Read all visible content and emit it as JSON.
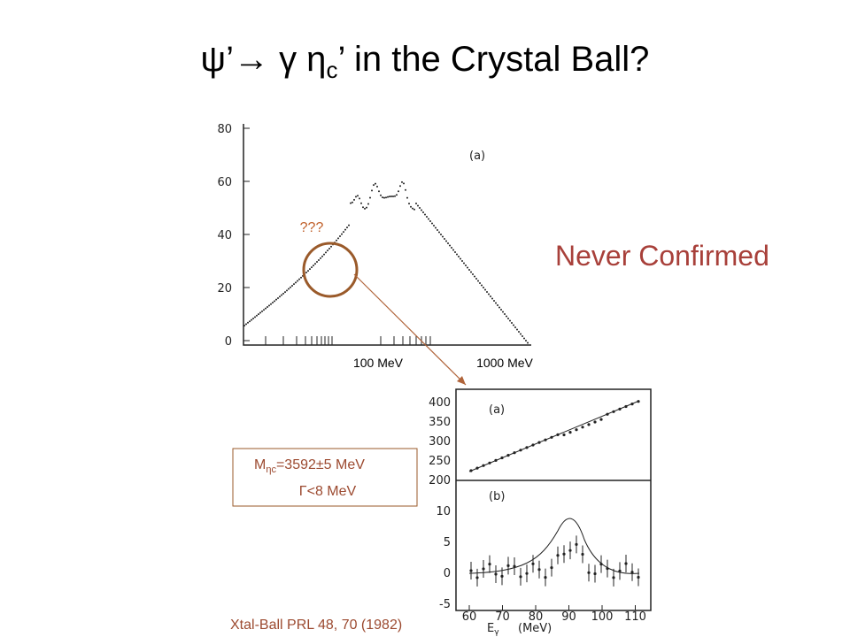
{
  "header": {
    "title_parts": [
      "ψ’",
      "→",
      " γ η",
      "c",
      "’ in the Crystal Ball?"
    ]
  },
  "annotations": {
    "question": "???",
    "verdict": "Never Confirmed",
    "scale_low": "100 MeV",
    "scale_high": "1000 MeV",
    "citation": "Xtal-Ball PRL 48, 70 (1982)"
  },
  "result_box": {
    "mass_symbol": "M",
    "mass_subscript": "ηc",
    "mass_value": "=3592±5 MeV",
    "width": "Γ<8 MeV"
  },
  "figure_top": {
    "panel_label": "(a)",
    "yticks": [
      "80",
      "60",
      "40",
      "20",
      "0"
    ]
  },
  "figure_bottom": {
    "panel_a_label": "(a)",
    "panel_a_yticks": [
      "400",
      "350",
      "300",
      "250",
      "200"
    ],
    "panel_b_label": "(b)",
    "panel_b_yticks": [
      "10",
      "5",
      "0",
      "-5"
    ],
    "xticks": [
      "60",
      "70",
      "80",
      "90",
      "100",
      "110"
    ],
    "xlabel_symbol": "E",
    "xlabel_subscript": "γ",
    "xlabel_unit": "(MeV)"
  }
}
